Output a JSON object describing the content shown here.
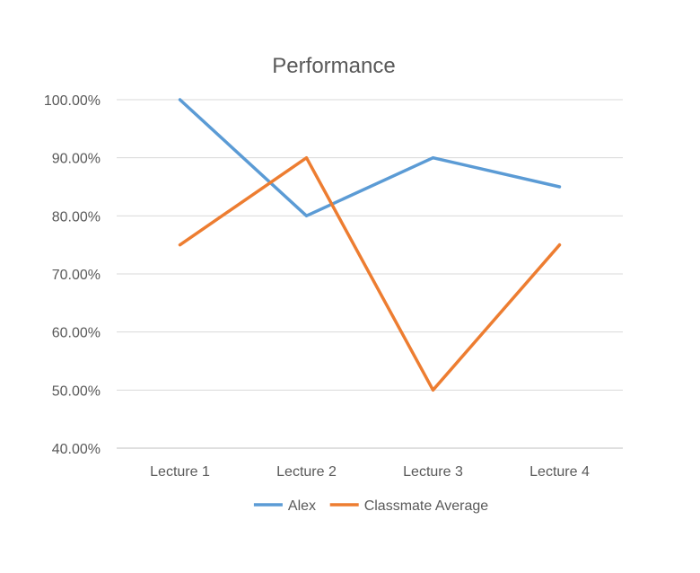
{
  "chart_data": {
    "type": "line",
    "title": "Performance",
    "xlabel": "",
    "ylabel": "",
    "categories": [
      "Lecture 1",
      "Lecture 2",
      "Lecture 3",
      "Lecture 4"
    ],
    "y_ticks": [
      "40.00%",
      "50.00%",
      "60.00%",
      "70.00%",
      "80.00%",
      "90.00%",
      "100.00%"
    ],
    "ylim": [
      0.4,
      1.0
    ],
    "y_step": 0.1,
    "grid": true,
    "legend_position": "bottom",
    "series": [
      {
        "name": "Alex",
        "values": [
          1.0,
          0.8,
          0.9,
          0.85
        ],
        "color": "#5b9bd5"
      },
      {
        "name": "Classmate Average",
        "values": [
          0.75,
          0.9,
          0.5,
          0.75
        ],
        "color": "#ed7d31"
      }
    ]
  }
}
